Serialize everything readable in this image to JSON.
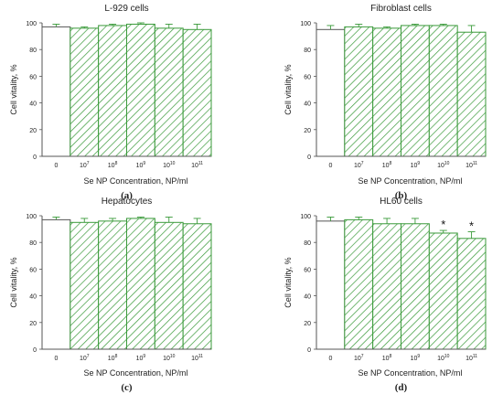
{
  "chart_data": [
    {
      "panel": "(a)",
      "type": "bar",
      "title": "L-929 cells",
      "xlabel": "Se NP Concentration, NP/ml",
      "ylabel": "Cell vitality, %",
      "ylim": [
        0,
        100
      ],
      "yticks": [
        "0",
        "20",
        "40",
        "60",
        "80",
        "100"
      ],
      "categories": [
        {
          "base": "0",
          "exp": ""
        },
        {
          "base": "10",
          "exp": "7"
        },
        {
          "base": "10",
          "exp": "8"
        },
        {
          "base": "10",
          "exp": "9"
        },
        {
          "base": "10",
          "exp": "10"
        },
        {
          "base": "10",
          "exp": "11"
        }
      ],
      "values": [
        97,
        96,
        98,
        99,
        96,
        95
      ],
      "errors": [
        2,
        1,
        1,
        1,
        3,
        4
      ],
      "significance": [
        "",
        "",
        "",
        "",
        "",
        ""
      ]
    },
    {
      "panel": "(b)",
      "type": "bar",
      "title": "Fibroblast cells",
      "xlabel": "Se NP Concentration, NP/ml",
      "ylabel": "Cell vitality, %",
      "ylim": [
        0,
        100
      ],
      "yticks": [
        "0",
        "20",
        "40",
        "60",
        "80",
        "100"
      ],
      "categories": [
        {
          "base": "0",
          "exp": ""
        },
        {
          "base": "10",
          "exp": "7"
        },
        {
          "base": "10",
          "exp": "8"
        },
        {
          "base": "10",
          "exp": "9"
        },
        {
          "base": "10",
          "exp": "10"
        },
        {
          "base": "10",
          "exp": "11"
        }
      ],
      "values": [
        95,
        97,
        96,
        98,
        98,
        93
      ],
      "errors": [
        3,
        2,
        1,
        1,
        1,
        5
      ],
      "significance": [
        "",
        "",
        "",
        "",
        "",
        ""
      ]
    },
    {
      "panel": "(c)",
      "type": "bar",
      "title": "Hepatocytes",
      "xlabel": "Se NP Concentration, NP/ml",
      "ylabel": "Cell vitality, %",
      "ylim": [
        0,
        100
      ],
      "yticks": [
        "0",
        "20",
        "40",
        "60",
        "80",
        "100"
      ],
      "categories": [
        {
          "base": "0",
          "exp": ""
        },
        {
          "base": "10",
          "exp": "7"
        },
        {
          "base": "10",
          "exp": "8"
        },
        {
          "base": "10",
          "exp": "9"
        },
        {
          "base": "10",
          "exp": "10"
        },
        {
          "base": "10",
          "exp": "11"
        }
      ],
      "values": [
        97,
        95,
        96,
        98,
        95,
        94
      ],
      "errors": [
        2,
        3,
        2,
        1,
        4,
        4
      ],
      "significance": [
        "",
        "",
        "",
        "",
        "",
        ""
      ]
    },
    {
      "panel": "(d)",
      "type": "bar",
      "title": "HL60 cells",
      "xlabel": "Se NP Concentration, NP/ml",
      "ylabel": "Cell vitality, %",
      "ylim": [
        0,
        100
      ],
      "yticks": [
        "0",
        "20",
        "40",
        "60",
        "80",
        "100"
      ],
      "categories": [
        {
          "base": "0",
          "exp": ""
        },
        {
          "base": "10",
          "exp": "7"
        },
        {
          "base": "10",
          "exp": "8"
        },
        {
          "base": "10",
          "exp": "9"
        },
        {
          "base": "10",
          "exp": "10"
        },
        {
          "base": "10",
          "exp": "11"
        }
      ],
      "values": [
        96,
        97,
        94,
        94,
        87,
        83
      ],
      "errors": [
        3,
        2,
        4,
        4,
        2,
        5
      ],
      "significance": [
        "",
        "",
        "",
        "",
        "*",
        "*"
      ]
    }
  ],
  "colors": {
    "bar_stroke": "#3a9a3a",
    "hatch": "#3a9a3a",
    "control_fill": "#ffffff",
    "axis": "#555555",
    "text": "#222222"
  }
}
